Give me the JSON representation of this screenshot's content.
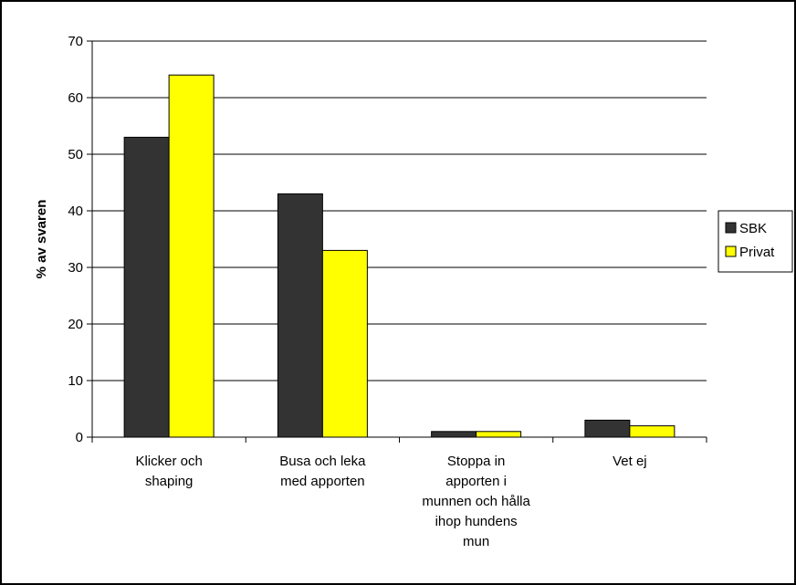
{
  "chart_data": {
    "type": "bar",
    "title": "",
    "xlabel": "",
    "ylabel": "% av svaren",
    "ylim": [
      0,
      70
    ],
    "yticks": [
      0,
      10,
      20,
      30,
      40,
      50,
      60,
      70
    ],
    "grid": true,
    "legend_position": "right",
    "categories": [
      [
        "Klicker och",
        "shaping"
      ],
      [
        "Busa och leka",
        "med apporten"
      ],
      [
        "Stoppa in",
        "apporten i",
        "munnen och hålla",
        "ihop hundens",
        "mun"
      ],
      [
        "Vet ej"
      ]
    ],
    "series": [
      {
        "name": "SBK",
        "color": "#333333",
        "values": [
          53,
          43,
          1,
          3
        ]
      },
      {
        "name": "Privat",
        "color": "#ffff00",
        "values": [
          64,
          33,
          1,
          2
        ]
      }
    ]
  }
}
